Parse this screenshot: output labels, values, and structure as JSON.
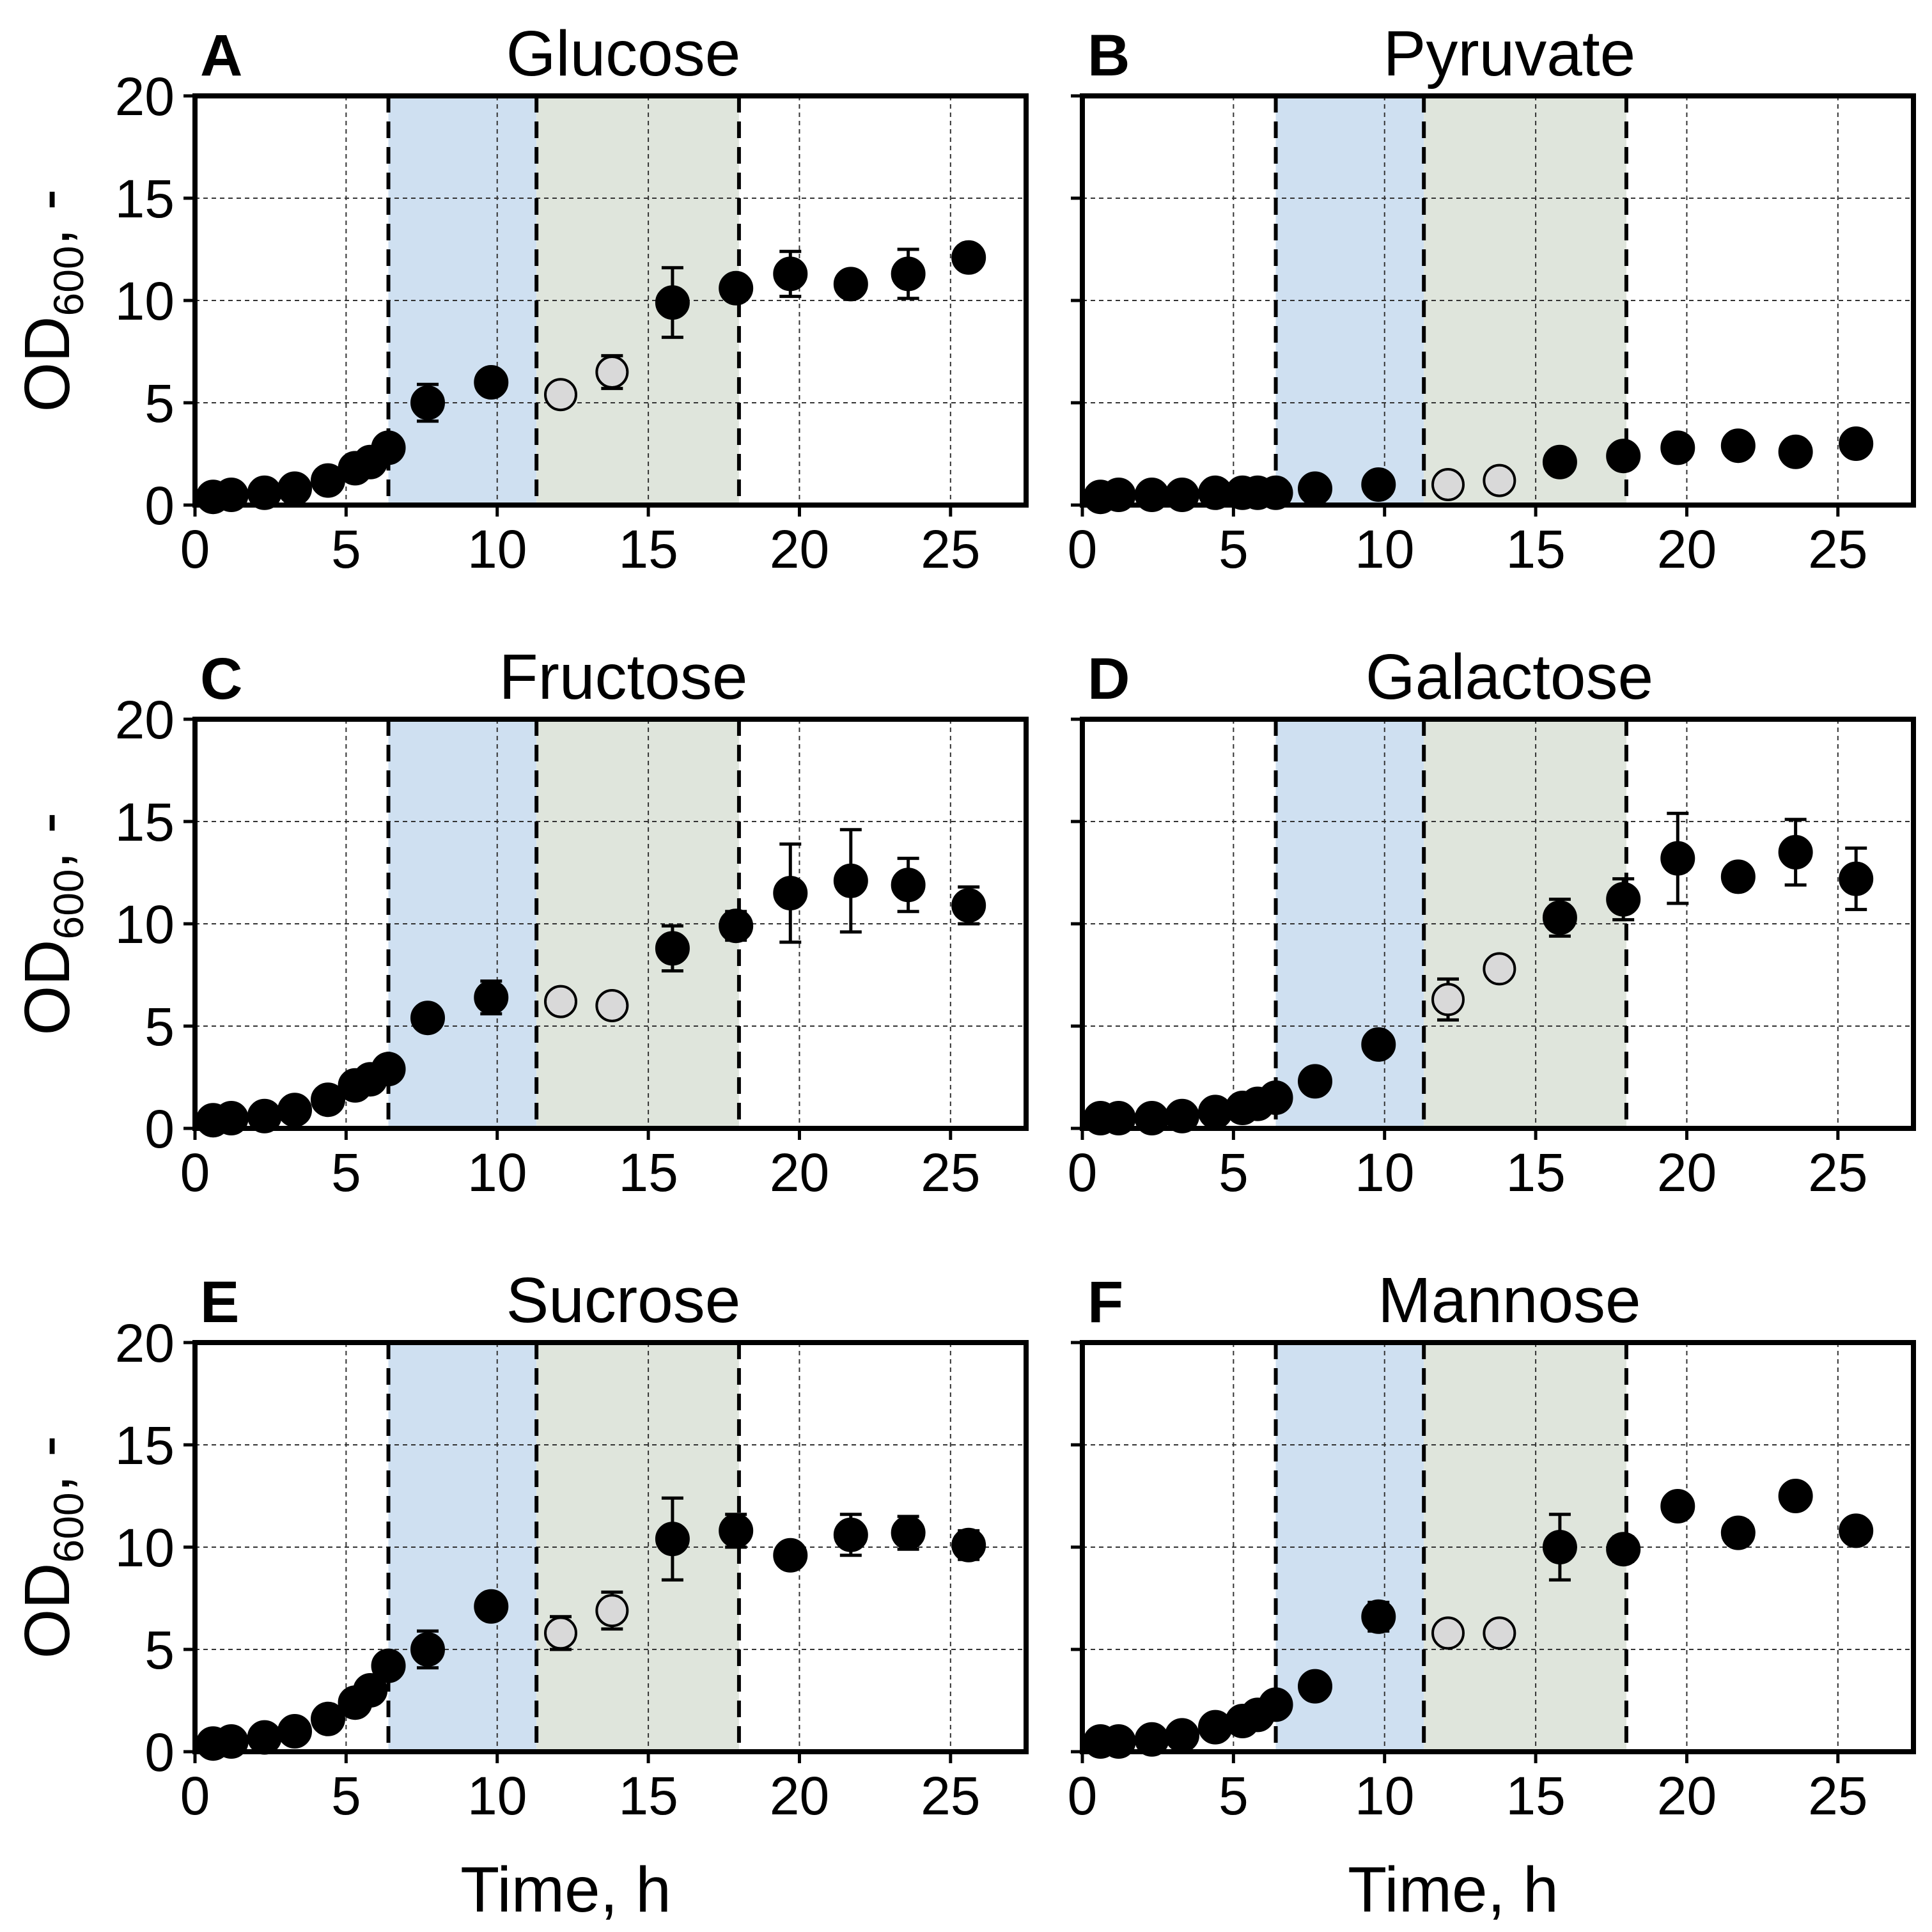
{
  "figure": {
    "ylabel_main": "OD",
    "ylabel_sub": "600",
    "ylabel_suffix": ", -",
    "xlabel": "Time, h"
  },
  "colors": {
    "phase1": "#cfe0f1",
    "phase2": "#dfe5dc",
    "filled_marker": "#000000",
    "open_marker": "#d9d9d9"
  },
  "chart_data": [
    {
      "type": "scatter",
      "panel": "A",
      "title": "Glucose",
      "xlim": [
        0,
        27.5
      ],
      "ylim": [
        0,
        20
      ],
      "xticks": [
        0,
        5,
        10,
        15,
        20,
        25
      ],
      "yticks": [
        0,
        5,
        10,
        15,
        20
      ],
      "shaded_regions": [
        {
          "x0": 6.4,
          "x1": 11.3,
          "color": "phase1"
        },
        {
          "x0": 11.3,
          "x1": 18.0,
          "color": "phase2"
        }
      ],
      "vlines": [
        6.4,
        11.3,
        18.0
      ],
      "points": [
        {
          "x": 0.6,
          "y": 0.4,
          "err": 0,
          "fill": "filled"
        },
        {
          "x": 1.2,
          "y": 0.5,
          "err": 0,
          "fill": "filled"
        },
        {
          "x": 2.3,
          "y": 0.6,
          "err": 0,
          "fill": "filled"
        },
        {
          "x": 3.3,
          "y": 0.8,
          "err": 0,
          "fill": "filled"
        },
        {
          "x": 4.4,
          "y": 1.2,
          "err": 0,
          "fill": "filled"
        },
        {
          "x": 5.3,
          "y": 1.8,
          "err": 0,
          "fill": "filled"
        },
        {
          "x": 5.8,
          "y": 2.1,
          "err": 0,
          "fill": "filled"
        },
        {
          "x": 6.4,
          "y": 2.8,
          "err": 0,
          "fill": "filled"
        },
        {
          "x": 7.7,
          "y": 5.0,
          "err": 0.9,
          "fill": "filled"
        },
        {
          "x": 9.8,
          "y": 6.0,
          "err": 0,
          "fill": "filled"
        },
        {
          "x": 12.1,
          "y": 5.4,
          "err": 0,
          "fill": "open"
        },
        {
          "x": 13.8,
          "y": 6.5,
          "err": 0.8,
          "fill": "open"
        },
        {
          "x": 15.8,
          "y": 9.9,
          "err": 1.7,
          "fill": "filled"
        },
        {
          "x": 17.9,
          "y": 10.6,
          "err": 0,
          "fill": "filled"
        },
        {
          "x": 19.7,
          "y": 11.3,
          "err": 1.1,
          "fill": "filled"
        },
        {
          "x": 21.7,
          "y": 10.8,
          "err": 0,
          "fill": "filled"
        },
        {
          "x": 23.6,
          "y": 11.3,
          "err": 1.2,
          "fill": "filled"
        },
        {
          "x": 25.6,
          "y": 12.1,
          "err": 0.5,
          "fill": "filled"
        }
      ]
    },
    {
      "type": "scatter",
      "panel": "B",
      "title": "Pyruvate",
      "xlim": [
        0,
        27.5
      ],
      "ylim": [
        0,
        20
      ],
      "xticks": [
        0,
        5,
        10,
        15,
        20,
        25
      ],
      "yticks": [
        0,
        5,
        10,
        15,
        20
      ],
      "shaded_regions": [
        {
          "x0": 6.4,
          "x1": 11.3,
          "color": "phase1"
        },
        {
          "x0": 11.3,
          "x1": 18.0,
          "color": "phase2"
        }
      ],
      "vlines": [
        6.4,
        11.3,
        18.0
      ],
      "points": [
        {
          "x": 0.6,
          "y": 0.4,
          "err": 0,
          "fill": "filled"
        },
        {
          "x": 1.2,
          "y": 0.5,
          "err": 0,
          "fill": "filled"
        },
        {
          "x": 2.3,
          "y": 0.5,
          "err": 0,
          "fill": "filled"
        },
        {
          "x": 3.3,
          "y": 0.5,
          "err": 0,
          "fill": "filled"
        },
        {
          "x": 4.4,
          "y": 0.6,
          "err": 0,
          "fill": "filled"
        },
        {
          "x": 5.3,
          "y": 0.6,
          "err": 0,
          "fill": "filled"
        },
        {
          "x": 5.8,
          "y": 0.6,
          "err": 0,
          "fill": "filled"
        },
        {
          "x": 6.4,
          "y": 0.6,
          "err": 0,
          "fill": "filled"
        },
        {
          "x": 7.7,
          "y": 0.8,
          "err": 0,
          "fill": "filled"
        },
        {
          "x": 9.8,
          "y": 1.0,
          "err": 0,
          "fill": "filled"
        },
        {
          "x": 12.1,
          "y": 1.0,
          "err": 0,
          "fill": "open"
        },
        {
          "x": 13.8,
          "y": 1.2,
          "err": 0,
          "fill": "open"
        },
        {
          "x": 15.8,
          "y": 2.1,
          "err": 0,
          "fill": "filled"
        },
        {
          "x": 17.9,
          "y": 2.4,
          "err": 0,
          "fill": "filled"
        },
        {
          "x": 19.7,
          "y": 2.8,
          "err": 0,
          "fill": "filled"
        },
        {
          "x": 21.7,
          "y": 2.9,
          "err": 0,
          "fill": "filled"
        },
        {
          "x": 23.6,
          "y": 2.6,
          "err": 0,
          "fill": "filled"
        },
        {
          "x": 25.6,
          "y": 3.0,
          "err": 0,
          "fill": "filled"
        }
      ]
    },
    {
      "type": "scatter",
      "panel": "C",
      "title": "Fructose",
      "xlim": [
        0,
        27.5
      ],
      "ylim": [
        0,
        20
      ],
      "xticks": [
        0,
        5,
        10,
        15,
        20,
        25
      ],
      "yticks": [
        0,
        5,
        10,
        15,
        20
      ],
      "shaded_regions": [
        {
          "x0": 6.4,
          "x1": 11.3,
          "color": "phase1"
        },
        {
          "x0": 11.3,
          "x1": 18.0,
          "color": "phase2"
        }
      ],
      "vlines": [
        6.4,
        11.3,
        18.0
      ],
      "points": [
        {
          "x": 0.6,
          "y": 0.4,
          "err": 0,
          "fill": "filled"
        },
        {
          "x": 1.2,
          "y": 0.5,
          "err": 0,
          "fill": "filled"
        },
        {
          "x": 2.3,
          "y": 0.6,
          "err": 0,
          "fill": "filled"
        },
        {
          "x": 3.3,
          "y": 0.9,
          "err": 0,
          "fill": "filled"
        },
        {
          "x": 4.4,
          "y": 1.4,
          "err": 0,
          "fill": "filled"
        },
        {
          "x": 5.3,
          "y": 2.1,
          "err": 0,
          "fill": "filled"
        },
        {
          "x": 5.8,
          "y": 2.4,
          "err": 0,
          "fill": "filled"
        },
        {
          "x": 6.4,
          "y": 2.9,
          "err": 0,
          "fill": "filled"
        },
        {
          "x": 7.7,
          "y": 5.4,
          "err": 0,
          "fill": "filled"
        },
        {
          "x": 9.8,
          "y": 6.4,
          "err": 0.8,
          "fill": "filled"
        },
        {
          "x": 12.1,
          "y": 6.2,
          "err": 0,
          "fill": "open"
        },
        {
          "x": 13.8,
          "y": 6.0,
          "err": 0,
          "fill": "open"
        },
        {
          "x": 15.8,
          "y": 8.8,
          "err": 1.1,
          "fill": "filled"
        },
        {
          "x": 17.9,
          "y": 9.9,
          "err": 0.7,
          "fill": "filled"
        },
        {
          "x": 19.7,
          "y": 11.5,
          "err": 2.4,
          "fill": "filled"
        },
        {
          "x": 21.7,
          "y": 12.1,
          "err": 2.5,
          "fill": "filled"
        },
        {
          "x": 23.6,
          "y": 11.9,
          "err": 1.3,
          "fill": "filled"
        },
        {
          "x": 25.6,
          "y": 10.9,
          "err": 0.9,
          "fill": "filled"
        }
      ]
    },
    {
      "type": "scatter",
      "panel": "D",
      "title": "Galactose",
      "xlim": [
        0,
        27.5
      ],
      "ylim": [
        0,
        20
      ],
      "xticks": [
        0,
        5,
        10,
        15,
        20,
        25
      ],
      "yticks": [
        0,
        5,
        10,
        15,
        20
      ],
      "shaded_regions": [
        {
          "x0": 6.4,
          "x1": 11.3,
          "color": "phase1"
        },
        {
          "x0": 11.3,
          "x1": 18.0,
          "color": "phase2"
        }
      ],
      "vlines": [
        6.4,
        11.3,
        18.0
      ],
      "points": [
        {
          "x": 0.6,
          "y": 0.5,
          "err": 0,
          "fill": "filled"
        },
        {
          "x": 1.2,
          "y": 0.5,
          "err": 0,
          "fill": "filled"
        },
        {
          "x": 2.3,
          "y": 0.5,
          "err": 0,
          "fill": "filled"
        },
        {
          "x": 3.3,
          "y": 0.6,
          "err": 0,
          "fill": "filled"
        },
        {
          "x": 4.4,
          "y": 0.8,
          "err": 0,
          "fill": "filled"
        },
        {
          "x": 5.3,
          "y": 1.0,
          "err": 0,
          "fill": "filled"
        },
        {
          "x": 5.8,
          "y": 1.2,
          "err": 0,
          "fill": "filled"
        },
        {
          "x": 6.4,
          "y": 1.5,
          "err": 0,
          "fill": "filled"
        },
        {
          "x": 7.7,
          "y": 2.3,
          "err": 0,
          "fill": "filled"
        },
        {
          "x": 9.8,
          "y": 4.1,
          "err": 0,
          "fill": "filled"
        },
        {
          "x": 12.1,
          "y": 6.3,
          "err": 1.0,
          "fill": "open"
        },
        {
          "x": 13.8,
          "y": 7.8,
          "err": 0,
          "fill": "open"
        },
        {
          "x": 15.8,
          "y": 10.3,
          "err": 0.9,
          "fill": "filled"
        },
        {
          "x": 17.9,
          "y": 11.2,
          "err": 1.0,
          "fill": "filled"
        },
        {
          "x": 19.7,
          "y": 13.2,
          "err": 2.2,
          "fill": "filled"
        },
        {
          "x": 21.7,
          "y": 12.3,
          "err": 0,
          "fill": "filled"
        },
        {
          "x": 23.6,
          "y": 13.5,
          "err": 1.6,
          "fill": "filled"
        },
        {
          "x": 25.6,
          "y": 12.2,
          "err": 1.5,
          "fill": "filled"
        }
      ]
    },
    {
      "type": "scatter",
      "panel": "E",
      "title": "Sucrose",
      "xlim": [
        0,
        27.5
      ],
      "ylim": [
        0,
        20
      ],
      "xticks": [
        0,
        5,
        10,
        15,
        20,
        25
      ],
      "yticks": [
        0,
        5,
        10,
        15,
        20
      ],
      "shaded_regions": [
        {
          "x0": 6.4,
          "x1": 11.3,
          "color": "phase1"
        },
        {
          "x0": 11.3,
          "x1": 18.0,
          "color": "phase2"
        }
      ],
      "vlines": [
        6.4,
        11.3,
        18.0
      ],
      "points": [
        {
          "x": 0.6,
          "y": 0.4,
          "err": 0,
          "fill": "filled"
        },
        {
          "x": 1.2,
          "y": 0.5,
          "err": 0,
          "fill": "filled"
        },
        {
          "x": 2.3,
          "y": 0.7,
          "err": 0,
          "fill": "filled"
        },
        {
          "x": 3.3,
          "y": 1.0,
          "err": 0,
          "fill": "filled"
        },
        {
          "x": 4.4,
          "y": 1.6,
          "err": 0,
          "fill": "filled"
        },
        {
          "x": 5.3,
          "y": 2.4,
          "err": 0,
          "fill": "filled"
        },
        {
          "x": 5.8,
          "y": 3.0,
          "err": 0,
          "fill": "filled"
        },
        {
          "x": 6.4,
          "y": 4.2,
          "err": 0,
          "fill": "filled"
        },
        {
          "x": 7.7,
          "y": 5.0,
          "err": 0.9,
          "fill": "filled"
        },
        {
          "x": 9.8,
          "y": 7.1,
          "err": 0,
          "fill": "filled"
        },
        {
          "x": 12.1,
          "y": 5.8,
          "err": 0.8,
          "fill": "open"
        },
        {
          "x": 13.8,
          "y": 6.9,
          "err": 0.9,
          "fill": "open"
        },
        {
          "x": 15.8,
          "y": 10.4,
          "err": 2.0,
          "fill": "filled"
        },
        {
          "x": 17.9,
          "y": 10.8,
          "err": 0.8,
          "fill": "filled"
        },
        {
          "x": 19.7,
          "y": 9.6,
          "err": 0,
          "fill": "filled"
        },
        {
          "x": 21.7,
          "y": 10.6,
          "err": 1.0,
          "fill": "filled"
        },
        {
          "x": 23.6,
          "y": 10.7,
          "err": 0.8,
          "fill": "filled"
        },
        {
          "x": 25.6,
          "y": 10.1,
          "err": 0.7,
          "fill": "filled"
        }
      ]
    },
    {
      "type": "scatter",
      "panel": "F",
      "title": "Mannose",
      "xlim": [
        0,
        27.5
      ],
      "ylim": [
        0,
        20
      ],
      "xticks": [
        0,
        5,
        10,
        15,
        20,
        25
      ],
      "yticks": [
        0,
        5,
        10,
        15,
        20
      ],
      "shaded_regions": [
        {
          "x0": 6.4,
          "x1": 11.3,
          "color": "phase1"
        },
        {
          "x0": 11.3,
          "x1": 18.0,
          "color": "phase2"
        }
      ],
      "vlines": [
        6.4,
        11.3,
        18.0
      ],
      "points": [
        {
          "x": 0.6,
          "y": 0.5,
          "err": 0,
          "fill": "filled"
        },
        {
          "x": 1.2,
          "y": 0.5,
          "err": 0,
          "fill": "filled"
        },
        {
          "x": 2.3,
          "y": 0.6,
          "err": 0,
          "fill": "filled"
        },
        {
          "x": 3.3,
          "y": 0.8,
          "err": 0,
          "fill": "filled"
        },
        {
          "x": 4.4,
          "y": 1.2,
          "err": 0,
          "fill": "filled"
        },
        {
          "x": 5.3,
          "y": 1.5,
          "err": 0,
          "fill": "filled"
        },
        {
          "x": 5.8,
          "y": 1.8,
          "err": 0,
          "fill": "filled"
        },
        {
          "x": 6.4,
          "y": 2.3,
          "err": 0,
          "fill": "filled"
        },
        {
          "x": 7.7,
          "y": 3.2,
          "err": 0,
          "fill": "filled"
        },
        {
          "x": 9.8,
          "y": 6.6,
          "err": 0.7,
          "fill": "filled"
        },
        {
          "x": 12.1,
          "y": 5.8,
          "err": 0,
          "fill": "open"
        },
        {
          "x": 13.8,
          "y": 5.8,
          "err": 0,
          "fill": "open"
        },
        {
          "x": 15.8,
          "y": 10.0,
          "err": 1.6,
          "fill": "filled"
        },
        {
          "x": 17.9,
          "y": 9.9,
          "err": 0.6,
          "fill": "filled"
        },
        {
          "x": 19.7,
          "y": 12.0,
          "err": 0,
          "fill": "filled"
        },
        {
          "x": 21.7,
          "y": 10.7,
          "err": 0.6,
          "fill": "filled"
        },
        {
          "x": 23.6,
          "y": 12.5,
          "err": 0,
          "fill": "filled"
        },
        {
          "x": 25.6,
          "y": 10.8,
          "err": 0.5,
          "fill": "filled"
        }
      ]
    }
  ]
}
